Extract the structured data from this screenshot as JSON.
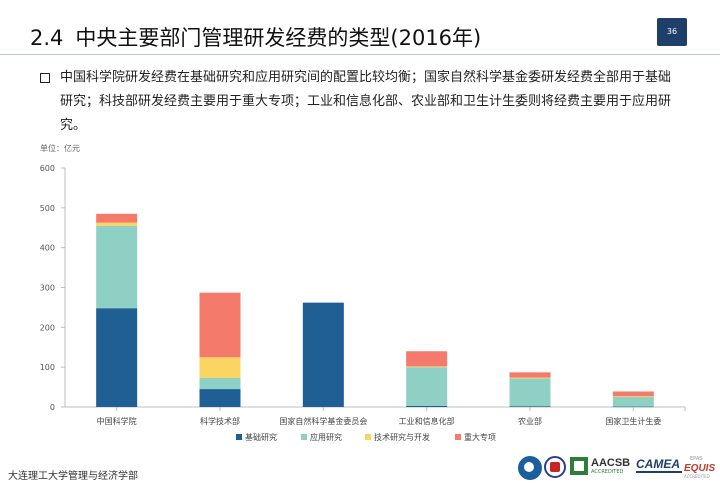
{
  "slide": {
    "section_number": "2.4",
    "title": "中央主要部门管理研发经费的类型(2016年)",
    "page_number": "36",
    "bullet_text": "中国科学院研发经费在基础研究和应用研究间的配置比较均衡；国家自然科学基金委研发经费全部用于基础研究；科技部研发经费主要用于重大专项；工业和信息化部、农业部和卫生计生委则将经费主要用于应用研究。",
    "unit_label": "单位：亿元",
    "footer_text": "大连理工大学管理与经济学部"
  },
  "logos": {
    "aacsb": "AACSB",
    "aacsb_sub": "ACCREDITED",
    "camea": "CAMEA",
    "equis_top": "EPAS",
    "equis": "EQUIS",
    "equis_sub": "ACCREDITED"
  },
  "colors": {
    "basic": "#1f5f93",
    "applied": "#8fd0c4",
    "tech": "#fcd462",
    "major": "#f47b6b",
    "axis": "#bfbfbf"
  },
  "chart_data": {
    "type": "bar",
    "stacked": true,
    "categories": [
      "中国科学院",
      "科学技术部",
      "国家自然科学基金委员会",
      "工业和信息化部",
      "农业部",
      "国家卫生计生委"
    ],
    "series": [
      {
        "name": "基础研究",
        "color": "#1f5f93",
        "values": [
          248,
          45,
          262,
          3,
          2,
          1
        ]
      },
      {
        "name": "应用研究",
        "color": "#8fd0c4",
        "values": [
          207,
          28,
          0,
          97,
          70,
          24
        ]
      },
      {
        "name": "技术研究与开发",
        "color": "#fcd462",
        "values": [
          8,
          52,
          0,
          2,
          2,
          2
        ]
      },
      {
        "name": "重大专项",
        "color": "#f47b6b",
        "values": [
          22,
          162,
          0,
          38,
          13,
          12
        ]
      }
    ],
    "ylim": [
      0,
      600
    ],
    "yticks": [
      0,
      100,
      200,
      300,
      400,
      500,
      600
    ],
    "grid": false,
    "legend": "bottom"
  }
}
